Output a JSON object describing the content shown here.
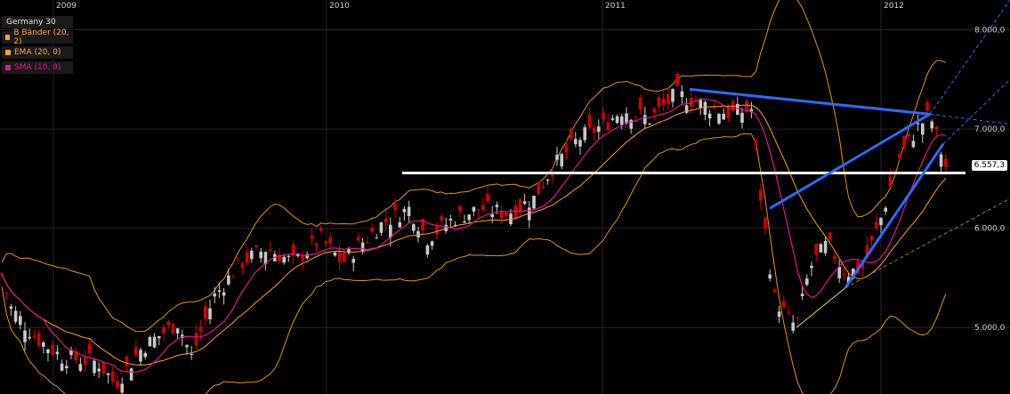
{
  "chart_data": {
    "type": "candlestick",
    "instrument": "Germany 30",
    "x_labels": [
      "2009",
      "2010",
      "2011",
      "2012"
    ],
    "y_ticks": [
      "8.000,0",
      "7.000,0",
      "6.000,0",
      "5.000,0"
    ],
    "ylim": [
      4330,
      8300
    ],
    "last_price": "6.557,3",
    "legend": [
      {
        "label": "B Bänder (20, 2)",
        "color": "#ff9d2e"
      },
      {
        "label": "EMA (20, 0)",
        "color": "#ff9d2e"
      },
      {
        "label": "SMA (10, 0)",
        "color": "#e0168c"
      }
    ],
    "horizontal_level": 6557.3,
    "grid": true,
    "colors": {
      "up": "#c8c8c8",
      "down": "#d40000",
      "bands": "#e8901f",
      "ema": "#ff9d2e",
      "sma": "#e0168c",
      "trendline": "#2a6bff",
      "support": "#ffffff"
    }
  }
}
